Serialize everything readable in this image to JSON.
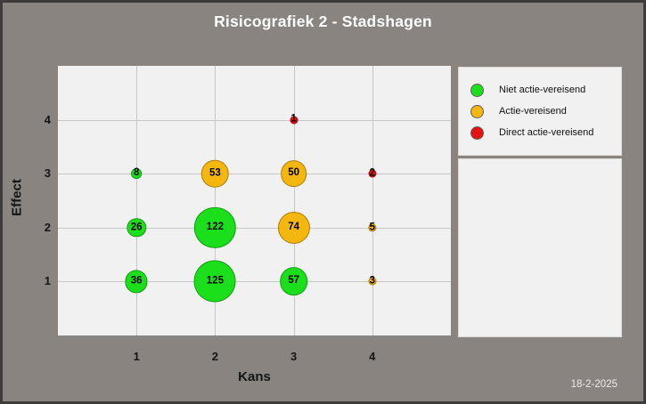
{
  "title": "Risicografiek 2 - Stadshagen",
  "date": "18-2-2025",
  "colors": {
    "background": "#8a8481",
    "frame_border": "#3e3b3a",
    "panel_bg": "#f1f1f1",
    "gridline": "#c7c7c7",
    "green": "#1adf1a",
    "orange": "#f5b70d",
    "red": "#e81111"
  },
  "legend": {
    "items": [
      {
        "label": "Niet actie-vereisend",
        "status": "green",
        "color": "#1adf1a"
      },
      {
        "label": "Actie-vereisend",
        "status": "orange",
        "color": "#f5b70d"
      },
      {
        "label": "Direct actie-vereisend",
        "status": "red",
        "color": "#e81111"
      }
    ]
  },
  "chart_data": {
    "type": "scatter",
    "subtype": "bubble",
    "title": "Risicografiek 2 - Stadshagen",
    "xlabel": "Kans",
    "ylabel": "Effect",
    "xlim": [
      0,
      5
    ],
    "ylim": [
      0,
      5
    ],
    "xticks": [
      1,
      2,
      3,
      4
    ],
    "yticks": [
      1,
      2,
      3,
      4
    ],
    "grid": true,
    "legend_position": "top-right",
    "size_encoding": "bubble area proportional to value",
    "points": [
      {
        "x": 1,
        "y": 1,
        "value": 36,
        "status": "green"
      },
      {
        "x": 1,
        "y": 2,
        "value": 26,
        "status": "green"
      },
      {
        "x": 1,
        "y": 3,
        "value": 8,
        "status": "green"
      },
      {
        "x": 2,
        "y": 1,
        "value": 125,
        "status": "green"
      },
      {
        "x": 2,
        "y": 2,
        "value": 122,
        "status": "green"
      },
      {
        "x": 2,
        "y": 3,
        "value": 53,
        "status": "orange"
      },
      {
        "x": 3,
        "y": 1,
        "value": 57,
        "status": "green"
      },
      {
        "x": 3,
        "y": 2,
        "value": 74,
        "status": "orange"
      },
      {
        "x": 3,
        "y": 3,
        "value": 50,
        "status": "orange"
      },
      {
        "x": 3,
        "y": 4,
        "value": 1,
        "status": "red"
      },
      {
        "x": 4,
        "y": 1,
        "value": 3,
        "status": "orange"
      },
      {
        "x": 4,
        "y": 2,
        "value": 5,
        "status": "orange"
      },
      {
        "x": 4,
        "y": 3,
        "value": 2,
        "status": "red"
      }
    ]
  }
}
